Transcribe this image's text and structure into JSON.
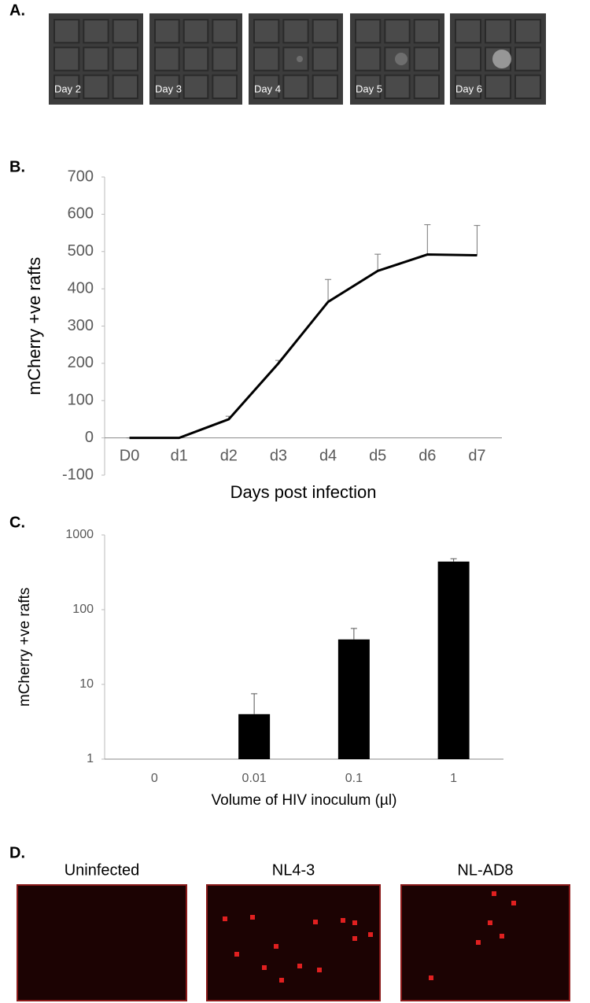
{
  "panel_labels": [
    "A.",
    "B.",
    "C.",
    "D."
  ],
  "images_a": [
    "Day 2",
    "Day 3",
    "Day 4",
    "Day 5",
    "Day 6"
  ],
  "images_d": [
    "Uninfected",
    "NL4-3",
    "NL-AD8"
  ],
  "chart_data": [
    {
      "type": "line",
      "categories": [
        "D0",
        "d1",
        "d2",
        "d3",
        "d4",
        "d5",
        "d6",
        "d7"
      ],
      "values": [
        0,
        0,
        50,
        200,
        365,
        448,
        492,
        490
      ],
      "errors": [
        0,
        0,
        8,
        8,
        60,
        45,
        80,
        80
      ],
      "color": "#000000",
      "ylim": [
        -100,
        700
      ],
      "yticks": [
        -100,
        0,
        100,
        200,
        300,
        400,
        500,
        600,
        700
      ],
      "xlabel": "Days post infection",
      "ylabel": "mCherry +ve rafts"
    },
    {
      "type": "bar",
      "categories": [
        "0",
        "0.01",
        "0.1",
        "1"
      ],
      "values": [
        null,
        4,
        40,
        440
      ],
      "errors": [
        null,
        3.5,
        16,
        40
      ],
      "color": "#000000",
      "log": true,
      "ylim": [
        1,
        1000
      ],
      "yticks": [
        1,
        10,
        100,
        1000
      ],
      "xlabel": "Volume of HIV inoculum (µl)",
      "ylabel": "mCherry +ve rafts"
    }
  ]
}
